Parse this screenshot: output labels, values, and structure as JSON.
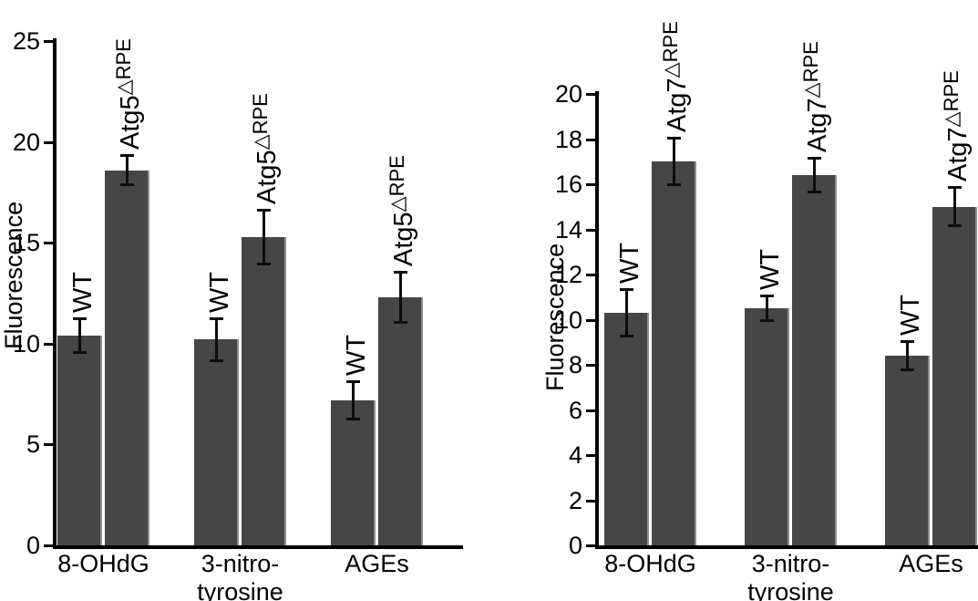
{
  "figure": {
    "background": "#ffffff",
    "bar_color": "#464646",
    "axis_color": "#000000",
    "text_color": "#000000"
  },
  "chart_data": [
    {
      "id": "atg5-panel",
      "type": "bar",
      "title": "",
      "xlabel": "",
      "ylabel": "Fluorescence",
      "ylim": [
        0,
        25
      ],
      "yticks": [
        0,
        5,
        10,
        15,
        20,
        25
      ],
      "grid": false,
      "legend": "none (bars labeled directly with rotated text)",
      "categories": [
        [
          "8-OHdG"
        ],
        [
          "3-nitro-",
          "tyrosine"
        ],
        [
          "AGEs"
        ]
      ],
      "series": [
        {
          "label_base": "WT",
          "label_sup": "",
          "values": [
            10.4,
            10.2,
            7.2
          ],
          "errors": [
            0.9,
            1.1,
            1.0
          ]
        },
        {
          "label_base": "Atg5",
          "label_sup": "△RPE",
          "values": [
            18.6,
            15.3,
            12.3
          ],
          "errors": [
            0.8,
            1.4,
            1.3
          ]
        }
      ]
    },
    {
      "id": "atg7-panel",
      "type": "bar",
      "title": "",
      "xlabel": "",
      "ylabel": "Fluorescence",
      "ylim": [
        0,
        20
      ],
      "yticks": [
        0,
        2,
        4,
        6,
        8,
        10,
        12,
        14,
        16,
        18,
        20
      ],
      "grid": false,
      "legend": "none (bars labeled directly with rotated text)",
      "categories": [
        [
          "8-OHdG"
        ],
        [
          "3-nitro-",
          "tyrosine"
        ],
        [
          "AGEs"
        ]
      ],
      "series": [
        {
          "label_base": "WT",
          "label_sup": "",
          "values": [
            10.3,
            10.5,
            8.4
          ],
          "errors": [
            1.1,
            0.6,
            0.7
          ]
        },
        {
          "label_base": "Atg7",
          "label_sup": "△RPE",
          "values": [
            17.0,
            16.4,
            15.0
          ],
          "errors": [
            1.1,
            0.8,
            0.9
          ]
        }
      ]
    }
  ]
}
